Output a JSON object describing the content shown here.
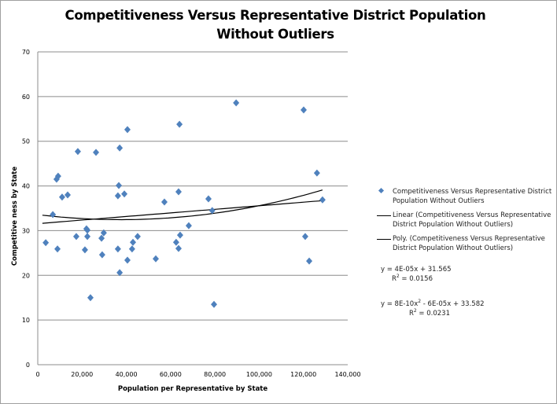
{
  "chart_data": {
    "type": "scatter",
    "title": "Competitiveness Versus Representative District Population Without Outliers",
    "xlabel": "Population  per Representative  by State",
    "ylabel": "Competitive ness  by State",
    "xlim": [
      0,
      140000
    ],
    "ylim": [
      0,
      70
    ],
    "xticks": [
      "0",
      "20,000",
      "40,000",
      "60,000",
      "80,000",
      "100,000",
      "120,000",
      "140,000"
    ],
    "xtick_values": [
      0,
      20000,
      40000,
      60000,
      80000,
      100000,
      120000,
      140000
    ],
    "yticks": [
      "0",
      "10",
      "20",
      "30",
      "40",
      "50",
      "60",
      "70"
    ],
    "ytick_values": [
      0,
      10,
      20,
      30,
      40,
      50,
      60,
      70
    ],
    "grid": "horizontal",
    "legend_position": "right",
    "series": [
      {
        "name": "Competitiveness Versus Representative District Population Without Outliers",
        "color": "#4f81bd",
        "points": [
          [
            3600,
            27.3
          ],
          [
            6800,
            33.6
          ],
          [
            8500,
            41.5
          ],
          [
            9200,
            42.2
          ],
          [
            8900,
            25.9
          ],
          [
            11000,
            37.5
          ],
          [
            13500,
            38.0
          ],
          [
            18100,
            47.7
          ],
          [
            17400,
            28.7
          ],
          [
            21300,
            25.7
          ],
          [
            22000,
            30.4
          ],
          [
            22400,
            30.1
          ],
          [
            22400,
            28.7
          ],
          [
            23800,
            15.0
          ],
          [
            26300,
            47.5
          ],
          [
            28800,
            28.3
          ],
          [
            29100,
            24.6
          ],
          [
            29800,
            29.5
          ],
          [
            40500,
            52.6
          ],
          [
            37000,
            48.5
          ],
          [
            36600,
            40.1
          ],
          [
            36200,
            37.8
          ],
          [
            39100,
            38.2
          ],
          [
            36200,
            25.9
          ],
          [
            37000,
            20.6
          ],
          [
            40500,
            23.4
          ],
          [
            43000,
            27.4
          ],
          [
            42600,
            25.9
          ],
          [
            45100,
            28.7
          ],
          [
            53300,
            23.7
          ],
          [
            57200,
            36.4
          ],
          [
            62500,
            27.4
          ],
          [
            63600,
            38.7
          ],
          [
            64000,
            53.8
          ],
          [
            63600,
            26.0
          ],
          [
            64300,
            29.0
          ],
          [
            68200,
            31.1
          ],
          [
            77100,
            37.1
          ],
          [
            78800,
            34.5
          ],
          [
            79600,
            13.5
          ],
          [
            89600,
            58.6
          ],
          [
            120100,
            57.0
          ],
          [
            120800,
            28.7
          ],
          [
            122600,
            23.2
          ],
          [
            126100,
            42.9
          ],
          [
            128600,
            36.9
          ]
        ]
      }
    ],
    "trendlines": [
      {
        "name": "Linear (Competitiveness Versus Representative District Population Without Outliers)",
        "type": "linear",
        "coefficients": [
          31.565,
          4e-05
        ],
        "equation": "y = 4E-05x + 31.565",
        "r2_label": "R",
        "r2_value": " = 0.0156"
      },
      {
        "name": "Poly. (Competitiveness Versus Representative District Population Without Outliers)",
        "type": "poly2",
        "coefficients": [
          33.582,
          -6e-05,
          8e-10
        ],
        "equation_a": "y = 8E-10x",
        "equation_b": " - 6E-05x + 33.582",
        "r2_label": "R",
        "r2_value": " = 0.0231"
      }
    ]
  }
}
